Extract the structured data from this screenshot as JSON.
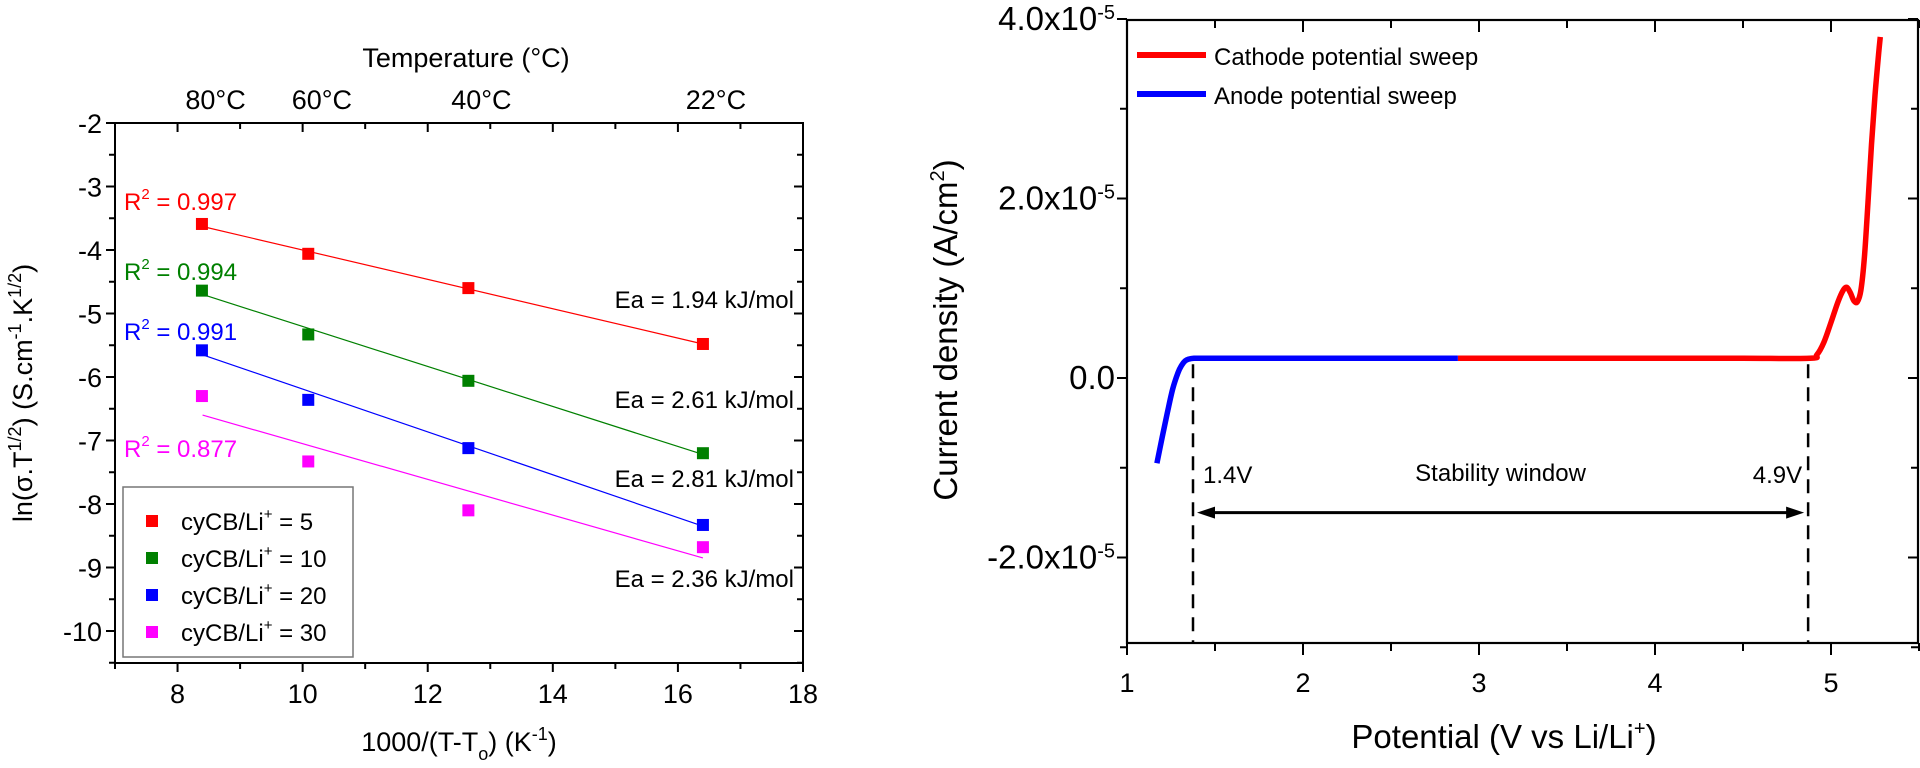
{
  "chart_data": [
    {
      "id": "arrhenius",
      "type": "scatter",
      "title": "",
      "xlabel": "1000/(T-T",
      "xlabel_sub": "o",
      "xlabel_tail": ") (K",
      "xlabel_sup": "-1",
      "xlabel_end": ")",
      "ylabel_parts": [
        "ln(σ.T",
        "1/2",
        ") (S.cm",
        "-1",
        ".K",
        "1/2",
        ")"
      ],
      "top_xlabel": "Temperature (°C)",
      "xlim": [
        7,
        18
      ],
      "ylim": [
        -10.5,
        -2
      ],
      "xticks": [
        8,
        10,
        12,
        14,
        16,
        18
      ],
      "xtick_labels": [
        "8",
        "10",
        "12",
        "14",
        "16",
        "18"
      ],
      "yticks": [
        -2,
        -3,
        -4,
        -5,
        -6,
        -7,
        -8,
        -9,
        -10
      ],
      "ytick_labels": [
        "-2",
        "-3",
        "-4",
        "-5",
        "-6",
        "-7",
        "-8",
        "-9",
        "-10"
      ],
      "top_ticks": [
        {
          "x": 8.4,
          "label": "80°C"
        },
        {
          "x": 10.1,
          "label": "60°C"
        },
        {
          "x": 12.65,
          "label": "40°C"
        },
        {
          "x": 16.4,
          "label": "22°C"
        }
      ],
      "grid": false,
      "legend_position": "bottom-left",
      "series": [
        {
          "name": "cyCB/Li",
          "name_sup": "+",
          "name_tail": " = 5",
          "color": "#ff0000",
          "x": [
            8.39,
            10.09,
            12.65,
            16.4
          ],
          "y": [
            -3.59,
            -4.06,
            -4.6,
            -5.48
          ],
          "fit": [
            [
              8.4,
              -3.63
            ],
            [
              16.4,
              -5.48
            ]
          ],
          "r2_label": "R",
          "r2_sup": "2",
          "r2_value": " = 0.997",
          "ea_label": "Ea = 1.94 kJ/mol"
        },
        {
          "name": "cyCB/Li",
          "name_sup": "+",
          "name_tail": " = 10",
          "color": "#008000",
          "x": [
            8.39,
            10.09,
            12.65,
            16.4
          ],
          "y": [
            -4.64,
            -5.33,
            -6.06,
            -7.2
          ],
          "fit": [
            [
              8.4,
              -4.7
            ],
            [
              16.4,
              -7.22
            ]
          ],
          "r2_label": "R",
          "r2_sup": "2",
          "r2_value": " = 0.994",
          "ea_label": "Ea = 2.61 kJ/mol"
        },
        {
          "name": "cyCB/Li",
          "name_sup": "+",
          "name_tail": " = 20",
          "color": "#0000ff",
          "x": [
            8.39,
            10.09,
            12.65,
            16.4
          ],
          "y": [
            -5.58,
            -6.36,
            -7.12,
            -8.33
          ],
          "fit": [
            [
              8.4,
              -5.65
            ],
            [
              16.4,
              -8.35
            ]
          ],
          "r2_label": "R",
          "r2_sup": "2",
          "r2_value": " = 0.991",
          "ea_label": "Ea = 2.81 kJ/mol"
        },
        {
          "name": "cyCB/Li",
          "name_sup": "+",
          "name_tail": " = 30",
          "color": "#ff00ff",
          "x": [
            8.39,
            10.09,
            12.65,
            16.4
          ],
          "y": [
            -6.3,
            -7.33,
            -8.1,
            -8.68
          ],
          "fit": [
            [
              8.4,
              -6.6
            ],
            [
              16.4,
              -8.85
            ]
          ],
          "r2_label": "R",
          "r2_sup": "2",
          "r2_value": " = 0.877",
          "ea_label": "Ea = 2.36 kJ/mol"
        }
      ]
    },
    {
      "id": "lsv",
      "type": "line",
      "title": "",
      "xlabel": "Potential (V vs Li/Li",
      "xlabel_sup": "+",
      "xlabel_end": ")",
      "ylabel": "Current density (A/cm",
      "ylabel_sup": "2",
      "ylabel_end": ")",
      "xlim": [
        1,
        5.5
      ],
      "ylim": [
        -3e-05,
        4e-05
      ],
      "xticks": [
        1,
        2,
        3,
        4,
        5
      ],
      "xtick_labels": [
        "1",
        "2",
        "3",
        "4",
        "5"
      ],
      "yticks": [
        4e-05,
        2e-05,
        0,
        -2e-05
      ],
      "ytick_labels": [
        {
          "base": "4.0x10",
          "exp": "-5"
        },
        {
          "base": "2.0x10",
          "exp": "-5"
        },
        {
          "base": "0.0",
          "exp": ""
        },
        {
          "base": "-2.0x10",
          "exp": "-5"
        }
      ],
      "grid": false,
      "legend_position": "top-left",
      "series": [
        {
          "name": "Cathode potential sweep",
          "color": "#ff0000",
          "x": [
            2.88,
            3.5,
            4.0,
            4.5,
            4.88,
            4.92,
            4.96,
            5.0,
            5.04,
            5.07,
            5.09,
            5.11,
            5.13,
            5.15,
            5.17,
            5.19,
            5.21,
            5.23,
            5.25,
            5.27,
            5.28
          ],
          "y": [
            2.2e-06,
            2.2e-06,
            2.2e-06,
            2.2e-06,
            2.2e-06,
            2.6e-06,
            4e-06,
            6.2e-06,
            8.5e-06,
            9.8e-06,
            1.01e-05,
            9.5e-06,
            8.6e-06,
            8.5e-06,
            9.8e-06,
            1.35e-05,
            1.95e-05,
            2.6e-05,
            3.15e-05,
            3.6e-05,
            3.8e-05
          ]
        },
        {
          "name": "Anode potential sweep",
          "color": "#0000ff",
          "x": [
            1.17,
            1.2,
            1.23,
            1.26,
            1.29,
            1.31,
            1.33,
            1.35,
            1.38,
            1.45,
            2.0,
            2.5,
            2.88
          ],
          "y": [
            -9.5e-06,
            -6.6e-06,
            -3.8e-06,
            -1.2e-06,
            6e-07,
            1.4e-06,
            1.9e-06,
            2.1e-06,
            2.2e-06,
            2.2e-06,
            2.2e-06,
            2.2e-06,
            2.2e-06
          ]
        }
      ],
      "annotations": {
        "vlines": [
          {
            "x": 1.375,
            "label": "1.4V"
          },
          {
            "x": 4.87,
            "label": "4.9V"
          }
        ],
        "arrow": {
          "x_start": 1.375,
          "x_end": 4.87,
          "y": -1.5e-05,
          "label": "Stability window"
        }
      }
    }
  ]
}
